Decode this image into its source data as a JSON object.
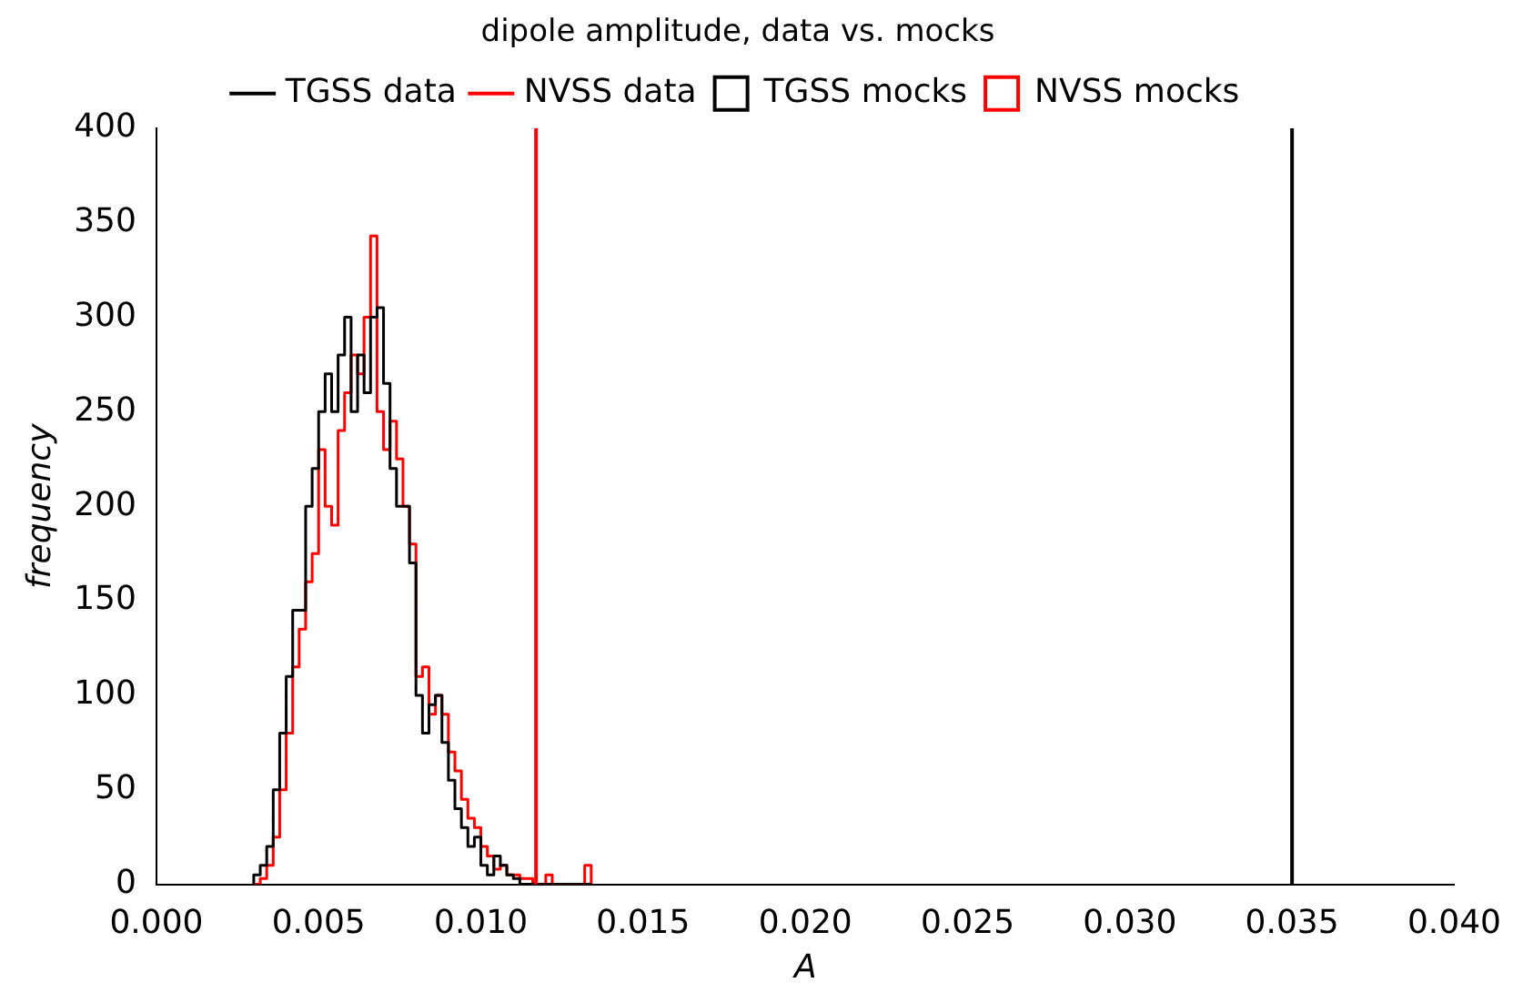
{
  "chart_data": {
    "type": "histogram",
    "title": "dipole amplitude, data vs. mocks",
    "xlabel": "A",
    "ylabel": "frequency",
    "bins": [
      0.003,
      0.0032,
      0.0034,
      0.0036,
      0.0038,
      0.004,
      0.0042,
      0.0044,
      0.0046,
      0.0048,
      0.005,
      0.0052,
      0.0054,
      0.0056,
      0.0058,
      0.006,
      0.0062,
      0.0064,
      0.0066,
      0.0068,
      0.007,
      0.0072,
      0.0074,
      0.0076,
      0.0078,
      0.008,
      0.0082,
      0.0084,
      0.0086,
      0.0088,
      0.009,
      0.0092,
      0.0094,
      0.0096,
      0.0098,
      0.01,
      0.0102,
      0.0104,
      0.0106,
      0.0108,
      0.011,
      0.0112,
      0.0114,
      0.0116,
      0.0118,
      0.012,
      0.0122,
      0.0124,
      0.0126,
      0.0128,
      0.013,
      0.0132,
      0.0134
    ],
    "series": [
      {
        "name": "TGSS mocks",
        "color": "#000000",
        "values": [
          5,
          10,
          20,
          50,
          80,
          110,
          145,
          145,
          200,
          220,
          250,
          270,
          250,
          280,
          300,
          250,
          280,
          260,
          300,
          305,
          265,
          220,
          200,
          200,
          170,
          100,
          80,
          95,
          100,
          75,
          55,
          40,
          30,
          20,
          25,
          10,
          5,
          15,
          10,
          5,
          3,
          0,
          0,
          0,
          0,
          0,
          0,
          0,
          0,
          0,
          0,
          0
        ]
      },
      {
        "name": "NVSS mocks",
        "color": "#ff0000",
        "values": [
          0,
          3,
          10,
          25,
          50,
          80,
          115,
          135,
          160,
          175,
          230,
          200,
          190,
          240,
          260,
          280,
          270,
          300,
          343,
          250,
          230,
          245,
          225,
          200,
          180,
          110,
          115,
          90,
          100,
          90,
          70,
          60,
          45,
          35,
          30,
          20,
          15,
          8,
          10,
          5,
          5,
          3,
          3,
          0,
          0,
          5,
          0,
          0,
          0,
          0,
          0,
          10
        ]
      }
    ],
    "ref_lines": [
      {
        "axis": "x",
        "value": 0.035,
        "label": "TGSS data",
        "color": "#000000"
      },
      {
        "axis": "x",
        "value": 0.0117,
        "label": "NVSS data",
        "color": "#ff0000"
      }
    ],
    "xlim": [
      0,
      0.04
    ],
    "ylim": [
      0,
      400
    ],
    "xticks": [
      {
        "value": 0,
        "label": "0.000"
      },
      {
        "value": 0.005,
        "label": "0.005"
      },
      {
        "value": 0.01,
        "label": "0.010"
      },
      {
        "value": 0.015,
        "label": "0.015"
      },
      {
        "value": 0.02,
        "label": "0.020"
      },
      {
        "value": 0.025,
        "label": "0.025"
      },
      {
        "value": 0.03,
        "label": "0.030"
      },
      {
        "value": 0.035,
        "label": "0.035"
      },
      {
        "value": 0.04,
        "label": "0.040"
      }
    ],
    "yticks": [
      0,
      50,
      100,
      150,
      200,
      250,
      300,
      350,
      400
    ],
    "grid": false,
    "legend": "top"
  }
}
